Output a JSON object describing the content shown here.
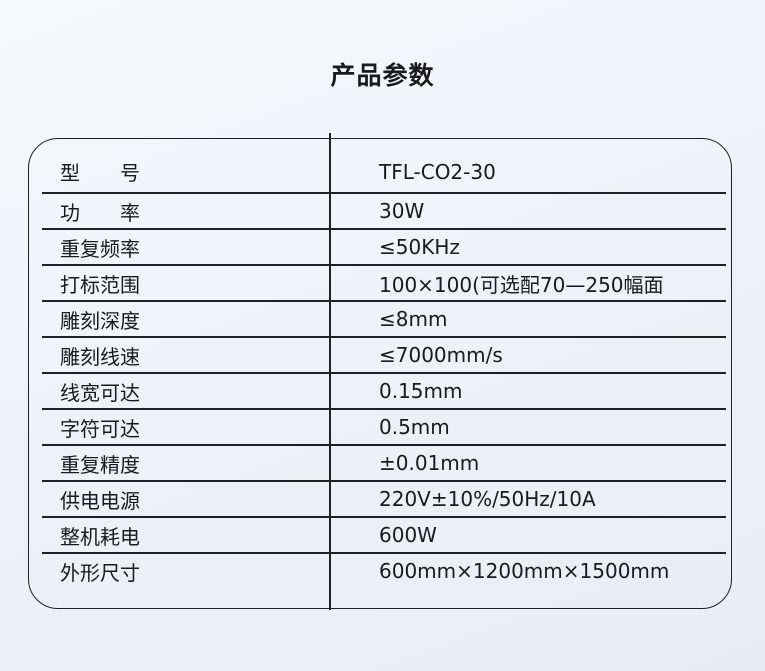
{
  "title": "产品参数",
  "rows": [
    {
      "label": "型　　号",
      "value": "TFL-CO2-30"
    },
    {
      "label": "功　　率",
      "value": "30W"
    },
    {
      "label": "重复频率",
      "value": "≤50KHz"
    },
    {
      "label": "打标范围",
      "value": "100×100(可选配70—250幅面"
    },
    {
      "label": "雕刻深度",
      "value": "≤8mm"
    },
    {
      "label": "雕刻线速",
      "value": "≤7000mm/s"
    },
    {
      "label": "线宽可达",
      "value": "0.15mm"
    },
    {
      "label": "字符可达",
      "value": "0.5mm"
    },
    {
      "label": "重复精度",
      "value": "±0.01mm"
    },
    {
      "label": "供电电源",
      "value": "220V±10%/50Hz/10A"
    },
    {
      "label": "整机耗电",
      "value": "600W"
    },
    {
      "label": "外形尺寸",
      "value": "600mm×1200mm×1500mm"
    }
  ]
}
